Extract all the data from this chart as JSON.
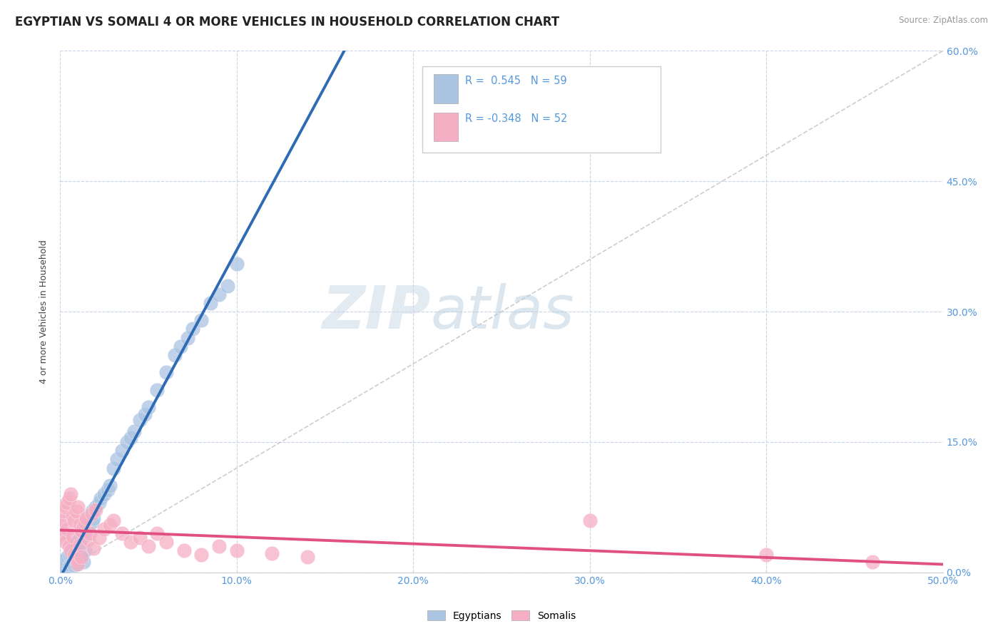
{
  "title": "EGYPTIAN VS SOMALI 4 OR MORE VEHICLES IN HOUSEHOLD CORRELATION CHART",
  "source": "Source: ZipAtlas.com",
  "ylabel": "4 or more Vehicles in Household",
  "xlim": [
    0.0,
    0.5
  ],
  "ylim": [
    0.0,
    0.6
  ],
  "xticks": [
    0.0,
    0.1,
    0.2,
    0.3,
    0.4,
    0.5
  ],
  "yticks": [
    0.0,
    0.15,
    0.3,
    0.45,
    0.6
  ],
  "xtick_labels": [
    "0.0%",
    "10.0%",
    "20.0%",
    "30.0%",
    "40.0%",
    "50.0%"
  ],
  "ytick_labels": [
    "0.0%",
    "15.0%",
    "30.0%",
    "45.0%",
    "60.0%"
  ],
  "watermark_zip": "ZIP",
  "watermark_atlas": "atlas",
  "R_egyptian": 0.545,
  "N_egyptian": 59,
  "R_somali": -0.348,
  "N_somali": 52,
  "egyptian_color": "#aac4e2",
  "somali_color": "#f5afc4",
  "egyptian_line_color": "#2f6bb5",
  "somali_line_color": "#e05080",
  "diagonal_color": "#c8c8c8",
  "background_color": "#ffffff",
  "grid_color": "#c8d4e8",
  "tick_color": "#5599dd",
  "title_fontsize": 12,
  "axis_label_fontsize": 9,
  "tick_fontsize": 10,
  "egyptian_x": [
    0.001,
    0.002,
    0.002,
    0.003,
    0.003,
    0.004,
    0.004,
    0.005,
    0.005,
    0.006,
    0.006,
    0.007,
    0.007,
    0.008,
    0.008,
    0.009,
    0.009,
    0.01,
    0.01,
    0.011,
    0.011,
    0.012,
    0.012,
    0.013,
    0.013,
    0.014,
    0.015,
    0.015,
    0.016,
    0.016,
    0.018,
    0.018,
    0.019,
    0.02,
    0.022,
    0.023,
    0.025,
    0.027,
    0.028,
    0.03,
    0.032,
    0.035,
    0.038,
    0.04,
    0.042,
    0.045,
    0.048,
    0.05,
    0.055,
    0.06,
    0.065,
    0.068,
    0.072,
    0.075,
    0.08,
    0.085,
    0.09,
    0.095,
    0.1
  ],
  "egyptian_y": [
    0.005,
    0.008,
    0.012,
    0.006,
    0.015,
    0.01,
    0.018,
    0.007,
    0.02,
    0.009,
    0.022,
    0.011,
    0.025,
    0.008,
    0.028,
    0.01,
    0.032,
    0.012,
    0.035,
    0.015,
    0.038,
    0.018,
    0.04,
    0.012,
    0.042,
    0.025,
    0.048,
    0.055,
    0.05,
    0.065,
    0.058,
    0.07,
    0.062,
    0.075,
    0.08,
    0.085,
    0.09,
    0.095,
    0.1,
    0.12,
    0.13,
    0.14,
    0.15,
    0.155,
    0.162,
    0.175,
    0.182,
    0.19,
    0.21,
    0.23,
    0.25,
    0.26,
    0.27,
    0.28,
    0.29,
    0.31,
    0.32,
    0.33,
    0.355
  ],
  "somali_x": [
    0.0,
    0.001,
    0.001,
    0.002,
    0.002,
    0.003,
    0.003,
    0.004,
    0.004,
    0.005,
    0.005,
    0.006,
    0.006,
    0.007,
    0.007,
    0.008,
    0.008,
    0.009,
    0.009,
    0.01,
    0.01,
    0.011,
    0.011,
    0.012,
    0.012,
    0.013,
    0.014,
    0.015,
    0.016,
    0.017,
    0.018,
    0.019,
    0.02,
    0.022,
    0.025,
    0.028,
    0.03,
    0.035,
    0.04,
    0.045,
    0.05,
    0.055,
    0.06,
    0.07,
    0.08,
    0.09,
    0.1,
    0.12,
    0.14,
    0.3,
    0.4,
    0.46
  ],
  "somali_y": [
    0.055,
    0.06,
    0.04,
    0.07,
    0.045,
    0.075,
    0.035,
    0.08,
    0.05,
    0.085,
    0.03,
    0.09,
    0.025,
    0.065,
    0.042,
    0.06,
    0.02,
    0.07,
    0.015,
    0.075,
    0.01,
    0.055,
    0.032,
    0.048,
    0.018,
    0.052,
    0.058,
    0.062,
    0.038,
    0.045,
    0.068,
    0.028,
    0.072,
    0.04,
    0.05,
    0.055,
    0.06,
    0.045,
    0.035,
    0.04,
    0.03,
    0.045,
    0.035,
    0.025,
    0.02,
    0.03,
    0.025,
    0.022,
    0.018,
    0.06,
    0.02,
    0.012
  ]
}
